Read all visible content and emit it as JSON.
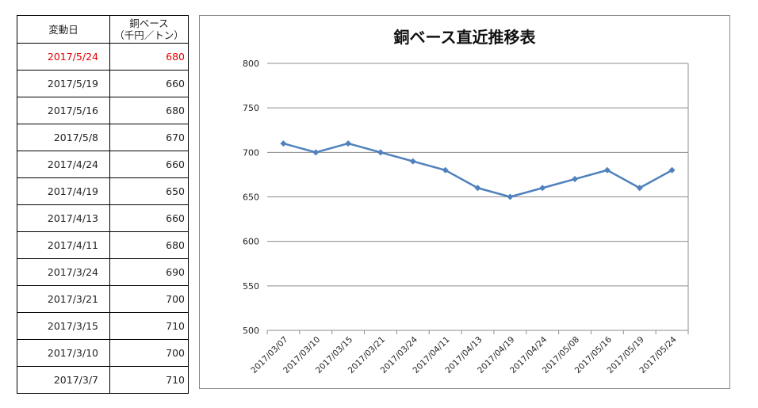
{
  "table": {
    "header": {
      "col1": "変動日",
      "col2_line1": "銅ベース",
      "col2_line2": "（千円／トン）"
    },
    "rows": [
      {
        "date": "2017/5/24",
        "value": "680",
        "highlight": true
      },
      {
        "date": "2017/5/19",
        "value": "660"
      },
      {
        "date": "2017/5/16",
        "value": "680"
      },
      {
        "date": "2017/5/8",
        "value": "670"
      },
      {
        "date": "2017/4/24",
        "value": "660"
      },
      {
        "date": "2017/4/19",
        "value": "650"
      },
      {
        "date": "2017/4/13",
        "value": "660"
      },
      {
        "date": "2017/4/11",
        "value": "680"
      },
      {
        "date": "2017/3/24",
        "value": "690"
      },
      {
        "date": "2017/3/21",
        "value": "700"
      },
      {
        "date": "2017/3/15",
        "value": "710"
      },
      {
        "date": "2017/3/10",
        "value": "700"
      },
      {
        "date": "2017/3/7",
        "value": "710"
      }
    ],
    "highlight_color": "#e00000"
  },
  "chart_data": {
    "type": "line",
    "title": "銅ベース直近推移表",
    "categories": [
      "2017/03/07",
      "2017/03/10",
      "2017/03/15",
      "2017/03/21",
      "2017/03/24",
      "2017/04/11",
      "2017/04/13",
      "2017/04/19",
      "2017/04/24",
      "2017/05/08",
      "2017/05/16",
      "2017/05/19",
      "2017/05/24"
    ],
    "series": [
      {
        "values": [
          710,
          700,
          710,
          700,
          690,
          680,
          660,
          650,
          660,
          670,
          680,
          660,
          680
        ],
        "color": "#4f81bd",
        "marker": "diamond"
      }
    ],
    "ylim": [
      500,
      800
    ],
    "yticks": [
      500,
      550,
      600,
      650,
      700,
      750,
      800
    ],
    "grid": true,
    "legend": "none"
  }
}
